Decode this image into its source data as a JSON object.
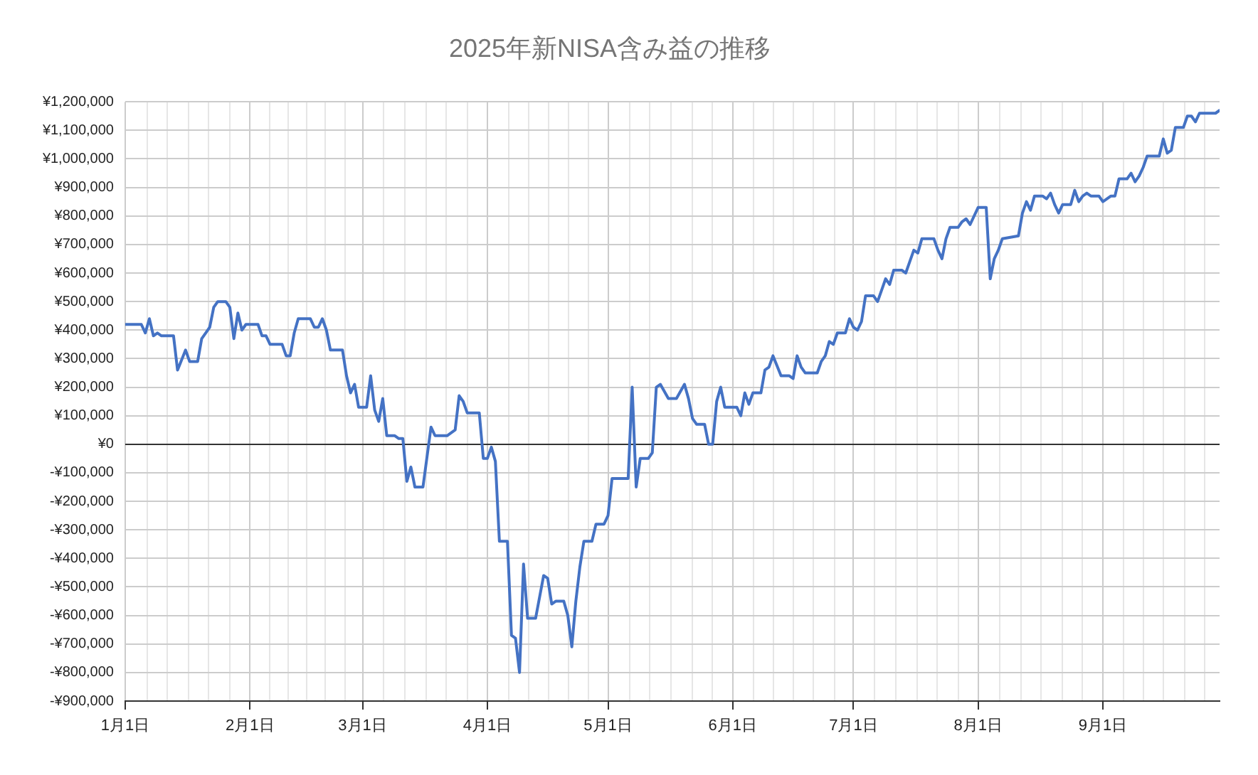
{
  "chart_data": {
    "type": "line",
    "title": "2025年新NISA含み益の推移",
    "color": "#4472c4",
    "grid": true,
    "marker": "none",
    "line_style": "solid",
    "xlim": [
      "2025-01-01",
      "2025-09-30"
    ],
    "xticks": [
      {
        "value": "2025-01-01",
        "label": "1月1日"
      },
      {
        "value": "2025-02-01",
        "label": "2月1日"
      },
      {
        "value": "2025-03-01",
        "label": "3月1日"
      },
      {
        "value": "2025-04-01",
        "label": "4月1日"
      },
      {
        "value": "2025-05-01",
        "label": "5月1日"
      },
      {
        "value": "2025-06-01",
        "label": "6月1日"
      },
      {
        "value": "2025-07-01",
        "label": "7月1日"
      },
      {
        "value": "2025-08-01",
        "label": "8月1日"
      },
      {
        "value": "2025-09-01",
        "label": "9月1日"
      }
    ],
    "ylim": [
      -900000,
      1200000
    ],
    "yticks": [
      {
        "value": -900000,
        "label": "-¥900,000"
      },
      {
        "value": -800000,
        "label": "-¥800,000"
      },
      {
        "value": -700000,
        "label": "-¥700,000"
      },
      {
        "value": -600000,
        "label": "-¥600,000"
      },
      {
        "value": -500000,
        "label": "-¥500,000"
      },
      {
        "value": -400000,
        "label": "-¥400,000"
      },
      {
        "value": -300000,
        "label": "-¥300,000"
      },
      {
        "value": -200000,
        "label": "-¥200,000"
      },
      {
        "value": -100000,
        "label": "-¥100,000"
      },
      {
        "value": 0,
        "label": "¥0"
      },
      {
        "value": 100000,
        "label": "¥100,000"
      },
      {
        "value": 200000,
        "label": "¥200,000"
      },
      {
        "value": 300000,
        "label": "¥300,000"
      },
      {
        "value": 400000,
        "label": "¥400,000"
      },
      {
        "value": 500000,
        "label": "¥500,000"
      },
      {
        "value": 600000,
        "label": "¥600,000"
      },
      {
        "value": 700000,
        "label": "¥700,000"
      },
      {
        "value": 800000,
        "label": "¥800,000"
      },
      {
        "value": 900000,
        "label": "¥900,000"
      },
      {
        "value": 1000000,
        "label": "¥1,000,000"
      },
      {
        "value": 1100000,
        "label": "¥1,100,000"
      },
      {
        "value": 1200000,
        "label": "¥1,200,000"
      }
    ],
    "x": [
      "2025-01-01",
      "2025-01-05",
      "2025-01-06",
      "2025-01-07",
      "2025-01-08",
      "2025-01-09",
      "2025-01-10",
      "2025-01-13",
      "2025-01-14",
      "2025-01-16",
      "2025-01-17",
      "2025-01-19",
      "2025-01-20",
      "2025-01-21",
      "2025-01-22",
      "2025-01-23",
      "2025-01-24",
      "2025-01-26",
      "2025-01-27",
      "2025-01-28",
      "2025-01-29",
      "2025-01-30",
      "2025-01-31",
      "2025-02-03",
      "2025-02-04",
      "2025-02-05",
      "2025-02-06",
      "2025-02-09",
      "2025-02-10",
      "2025-02-11",
      "2025-02-12",
      "2025-02-13",
      "2025-02-16",
      "2025-02-17",
      "2025-02-18",
      "2025-02-19",
      "2025-02-20",
      "2025-02-21",
      "2025-02-24",
      "2025-02-25",
      "2025-02-26",
      "2025-02-27",
      "2025-02-28",
      "2025-03-02",
      "2025-03-03",
      "2025-03-04",
      "2025-03-05",
      "2025-03-06",
      "2025-03-07",
      "2025-03-09",
      "2025-03-10",
      "2025-03-11",
      "2025-03-12",
      "2025-03-13",
      "2025-03-14",
      "2025-03-16",
      "2025-03-18",
      "2025-03-19",
      "2025-03-22",
      "2025-03-24",
      "2025-03-25",
      "2025-03-26",
      "2025-03-27",
      "2025-03-30",
      "2025-03-31",
      "2025-04-01",
      "2025-04-02",
      "2025-04-03",
      "2025-04-04",
      "2025-04-06",
      "2025-04-07",
      "2025-04-08",
      "2025-04-09",
      "2025-04-10",
      "2025-04-11",
      "2025-04-13",
      "2025-04-15",
      "2025-04-16",
      "2025-04-17",
      "2025-04-18",
      "2025-04-20",
      "2025-04-21",
      "2025-04-22",
      "2025-04-23",
      "2025-04-24",
      "2025-04-25",
      "2025-04-27",
      "2025-04-28",
      "2025-04-30",
      "2025-05-01",
      "2025-05-02",
      "2025-05-06",
      "2025-05-07",
      "2025-05-08",
      "2025-05-09",
      "2025-05-11",
      "2025-05-12",
      "2025-05-13",
      "2025-05-14",
      "2025-05-16",
      "2025-05-18",
      "2025-05-20",
      "2025-05-21",
      "2025-05-22",
      "2025-05-23",
      "2025-05-25",
      "2025-05-26",
      "2025-05-27",
      "2025-05-28",
      "2025-05-29",
      "2025-05-30",
      "2025-06-02",
      "2025-06-03",
      "2025-06-04",
      "2025-06-05",
      "2025-06-06",
      "2025-06-08",
      "2025-06-09",
      "2025-06-10",
      "2025-06-11",
      "2025-06-13",
      "2025-06-15",
      "2025-06-16",
      "2025-06-17",
      "2025-06-18",
      "2025-06-19",
      "2025-06-22",
      "2025-06-23",
      "2025-06-24",
      "2025-06-25",
      "2025-06-26",
      "2025-06-27",
      "2025-06-29",
      "2025-06-30",
      "2025-07-01",
      "2025-07-02",
      "2025-07-03",
      "2025-07-04",
      "2025-07-06",
      "2025-07-07",
      "2025-07-08",
      "2025-07-09",
      "2025-07-10",
      "2025-07-11",
      "2025-07-13",
      "2025-07-14",
      "2025-07-15",
      "2025-07-16",
      "2025-07-17",
      "2025-07-18",
      "2025-07-21",
      "2025-07-22",
      "2025-07-23",
      "2025-07-24",
      "2025-07-25",
      "2025-07-27",
      "2025-07-28",
      "2025-07-29",
      "2025-07-30",
      "2025-08-01",
      "2025-08-03",
      "2025-08-04",
      "2025-08-05",
      "2025-08-06",
      "2025-08-07",
      "2025-08-11",
      "2025-08-12",
      "2025-08-13",
      "2025-08-14",
      "2025-08-15",
      "2025-08-17",
      "2025-08-18",
      "2025-08-19",
      "2025-08-20",
      "2025-08-21",
      "2025-08-22",
      "2025-08-24",
      "2025-08-25",
      "2025-08-26",
      "2025-08-27",
      "2025-08-28",
      "2025-08-29",
      "2025-08-31",
      "2025-09-01",
      "2025-09-02",
      "2025-09-03",
      "2025-09-04",
      "2025-09-05",
      "2025-09-07",
      "2025-09-08",
      "2025-09-09",
      "2025-09-10",
      "2025-09-11",
      "2025-09-12",
      "2025-09-15",
      "2025-09-16",
      "2025-09-17",
      "2025-09-18",
      "2025-09-19",
      "2025-09-21",
      "2025-09-22",
      "2025-09-23",
      "2025-09-24",
      "2025-09-25",
      "2025-09-26",
      "2025-09-29",
      "2025-09-30"
    ],
    "values": [
      420000,
      420000,
      390000,
      440000,
      380000,
      390000,
      380000,
      380000,
      260000,
      330000,
      290000,
      290000,
      370000,
      390000,
      410000,
      480000,
      500000,
      500000,
      480000,
      370000,
      460000,
      400000,
      420000,
      420000,
      380000,
      380000,
      350000,
      350000,
      310000,
      310000,
      390000,
      440000,
      440000,
      410000,
      410000,
      440000,
      400000,
      330000,
      330000,
      240000,
      180000,
      210000,
      130000,
      130000,
      240000,
      120000,
      80000,
      160000,
      30000,
      30000,
      20000,
      20000,
      -130000,
      -80000,
      -150000,
      -150000,
      60000,
      30000,
      30000,
      50000,
      170000,
      150000,
      110000,
      110000,
      -50000,
      -50000,
      -10000,
      -60000,
      -340000,
      -340000,
      -670000,
      -680000,
      -800000,
      -420000,
      -610000,
      -610000,
      -460000,
      -470000,
      -560000,
      -550000,
      -550000,
      -600000,
      -710000,
      -550000,
      -430000,
      -340000,
      -340000,
      -280000,
      -280000,
      -250000,
      -120000,
      -120000,
      200000,
      -150000,
      -50000,
      -50000,
      -30000,
      200000,
      210000,
      160000,
      160000,
      210000,
      160000,
      90000,
      70000,
      70000,
      0,
      0,
      150000,
      200000,
      130000,
      130000,
      100000,
      180000,
      140000,
      180000,
      180000,
      260000,
      270000,
      310000,
      240000,
      240000,
      230000,
      310000,
      270000,
      250000,
      250000,
      290000,
      310000,
      360000,
      350000,
      390000,
      390000,
      440000,
      410000,
      400000,
      430000,
      520000,
      520000,
      500000,
      540000,
      580000,
      560000,
      610000,
      610000,
      600000,
      640000,
      680000,
      670000,
      720000,
      720000,
      680000,
      650000,
      720000,
      760000,
      760000,
      780000,
      790000,
      770000,
      830000,
      830000,
      580000,
      650000,
      680000,
      720000,
      730000,
      810000,
      850000,
      820000,
      870000,
      870000,
      860000,
      880000,
      840000,
      810000,
      840000,
      840000,
      890000,
      850000,
      870000,
      880000,
      870000,
      870000,
      850000,
      860000,
      870000,
      870000,
      930000,
      930000,
      950000,
      920000,
      940000,
      970000,
      1010000,
      1010000,
      1070000,
      1020000,
      1030000,
      1110000,
      1110000,
      1150000,
      1150000,
      1130000,
      1160000,
      1160000,
      1160000,
      1170000
    ]
  }
}
